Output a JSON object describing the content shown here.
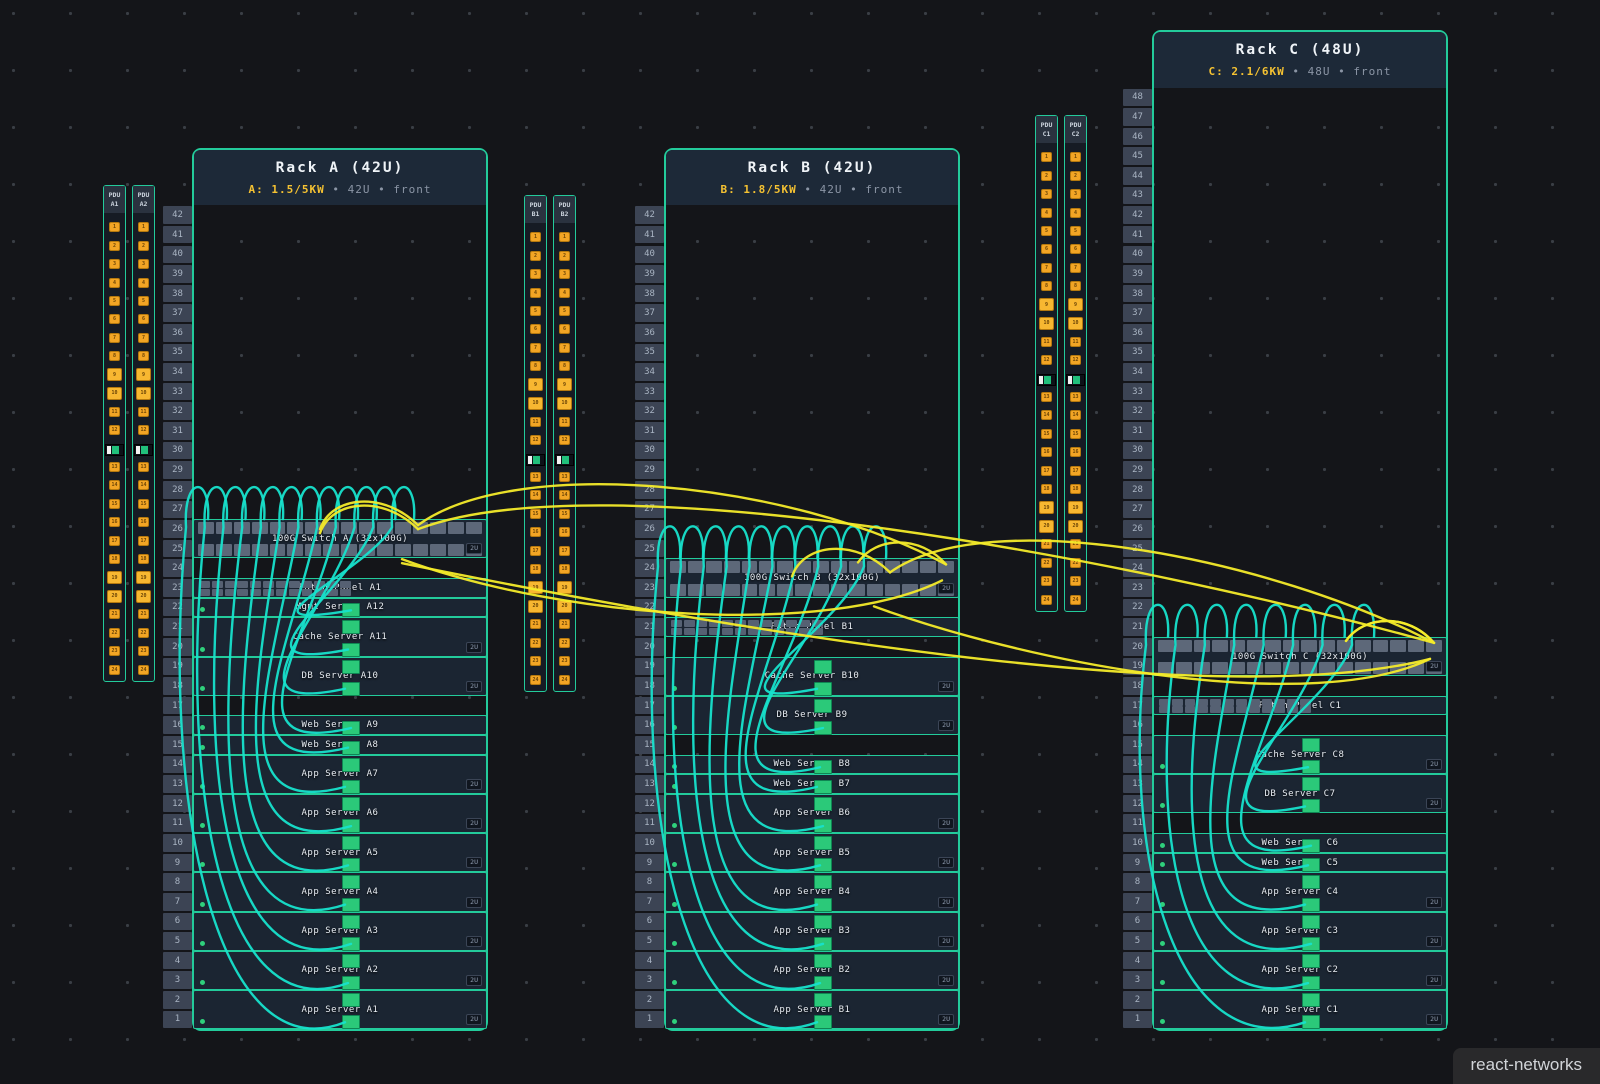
{
  "watermark": "react-networks",
  "ui": {
    "badge_2u": "2U",
    "separator": "•"
  },
  "colors": {
    "rack_border": "#23cb9b",
    "cable_server": "#17e2cc",
    "cable_uplink": "#f4eb2a",
    "power_accent": "#f5c232",
    "outlet": "#f2a525",
    "outlet_large": "#f7b731",
    "led": "#2fd07c",
    "header_bg": "#1d2938"
  },
  "pdu_config": {
    "outlet_count": 24,
    "large_outlets": [
      9,
      10,
      19,
      20
    ],
    "gauge_after_outlet": 12
  },
  "port_config": {
    "switch_ports_per_row": 16,
    "switch_port_rows": 2,
    "patch_ports_per_row": 12,
    "patch_port_rows": 2
  },
  "racks": [
    {
      "id": "A",
      "title": "Rack A (42U)",
      "power": "A: 1.5/5KW",
      "size_label": "42U",
      "view_label": "front",
      "units": 42,
      "pdus": [
        {
          "top": "PDU",
          "bottom": "A1"
        },
        {
          "top": "PDU",
          "bottom": "A2"
        }
      ],
      "equipment": [
        {
          "name": "100G Switch A (32x100G)",
          "type": "switch",
          "unit": 25,
          "size": 2
        },
        {
          "name": "Patch Panel A1",
          "type": "patch",
          "unit": 23,
          "size": 1
        },
        {
          "name": "Mgmt Server A12",
          "type": "server",
          "unit": 22,
          "size": 1
        },
        {
          "name": "Cache Server A11",
          "type": "server",
          "unit": 20,
          "size": 2
        },
        {
          "name": "DB Server A10",
          "type": "server",
          "unit": 18,
          "size": 2
        },
        {
          "name": "Web Server A9",
          "type": "server",
          "unit": 16,
          "size": 1
        },
        {
          "name": "Web Server A8",
          "type": "server",
          "unit": 15,
          "size": 1
        },
        {
          "name": "App Server A7",
          "type": "server",
          "unit": 13,
          "size": 2
        },
        {
          "name": "App Server A6",
          "type": "server",
          "unit": 11,
          "size": 2
        },
        {
          "name": "App Server A5",
          "type": "server",
          "unit": 9,
          "size": 2
        },
        {
          "name": "App Server A4",
          "type": "server",
          "unit": 7,
          "size": 2
        },
        {
          "name": "App Server A3",
          "type": "server",
          "unit": 5,
          "size": 2
        },
        {
          "name": "App Server A2",
          "type": "server",
          "unit": 3,
          "size": 2
        },
        {
          "name": "App Server A1",
          "type": "server",
          "unit": 1,
          "size": 2
        }
      ]
    },
    {
      "id": "B",
      "title": "Rack B (42U)",
      "power": "B: 1.8/5KW",
      "size_label": "42U",
      "view_label": "front",
      "units": 42,
      "pdus": [
        {
          "top": "PDU",
          "bottom": "B1"
        },
        {
          "top": "PDU",
          "bottom": "B2"
        }
      ],
      "equipment": [
        {
          "name": "100G Switch B (32x100G)",
          "type": "switch",
          "unit": 23,
          "size": 2
        },
        {
          "name": "Patch Panel B1",
          "type": "patch",
          "unit": 21,
          "size": 1
        },
        {
          "name": "Cache Server B10",
          "type": "server",
          "unit": 18,
          "size": 2
        },
        {
          "name": "DB Server B9",
          "type": "server",
          "unit": 16,
          "size": 2
        },
        {
          "name": "Web Server B8",
          "type": "server",
          "unit": 14,
          "size": 1
        },
        {
          "name": "Web Server B7",
          "type": "server",
          "unit": 13,
          "size": 1
        },
        {
          "name": "App Server B6",
          "type": "server",
          "unit": 11,
          "size": 2
        },
        {
          "name": "App Server B5",
          "type": "server",
          "unit": 9,
          "size": 2
        },
        {
          "name": "App Server B4",
          "type": "server",
          "unit": 7,
          "size": 2
        },
        {
          "name": "App Server B3",
          "type": "server",
          "unit": 5,
          "size": 2
        },
        {
          "name": "App Server B2",
          "type": "server",
          "unit": 3,
          "size": 2
        },
        {
          "name": "App Server B1",
          "type": "server",
          "unit": 1,
          "size": 2
        }
      ]
    },
    {
      "id": "C",
      "title": "Rack C (48U)",
      "power": "C: 2.1/6KW",
      "size_label": "48U",
      "view_label": "front",
      "units": 48,
      "pdus": [
        {
          "top": "PDU",
          "bottom": "C1"
        },
        {
          "top": "PDU",
          "bottom": "C2"
        }
      ],
      "equipment": [
        {
          "name": "100G Switch C (32x100G)",
          "type": "switch",
          "unit": 19,
          "size": 2
        },
        {
          "name": "Patch Panel C1",
          "type": "patch",
          "unit": 17,
          "size": 1
        },
        {
          "name": "Cache Server C8",
          "type": "server",
          "unit": 14,
          "size": 2
        },
        {
          "name": "DB Server C7",
          "type": "server",
          "unit": 12,
          "size": 2
        },
        {
          "name": "Web Server C6",
          "type": "server",
          "unit": 10,
          "size": 1
        },
        {
          "name": "Web Server C5",
          "type": "server",
          "unit": 9,
          "size": 1
        },
        {
          "name": "App Server C4",
          "type": "server",
          "unit": 7,
          "size": 2
        },
        {
          "name": "App Server C3",
          "type": "server",
          "unit": 5,
          "size": 2
        },
        {
          "name": "App Server C2",
          "type": "server",
          "unit": 3,
          "size": 2
        },
        {
          "name": "App Server C1",
          "type": "server",
          "unit": 1,
          "size": 2
        }
      ]
    }
  ],
  "links": [
    {
      "from": "A",
      "to": "B"
    },
    {
      "from": "A",
      "to": "C"
    },
    {
      "from": "B",
      "to": "C"
    }
  ]
}
